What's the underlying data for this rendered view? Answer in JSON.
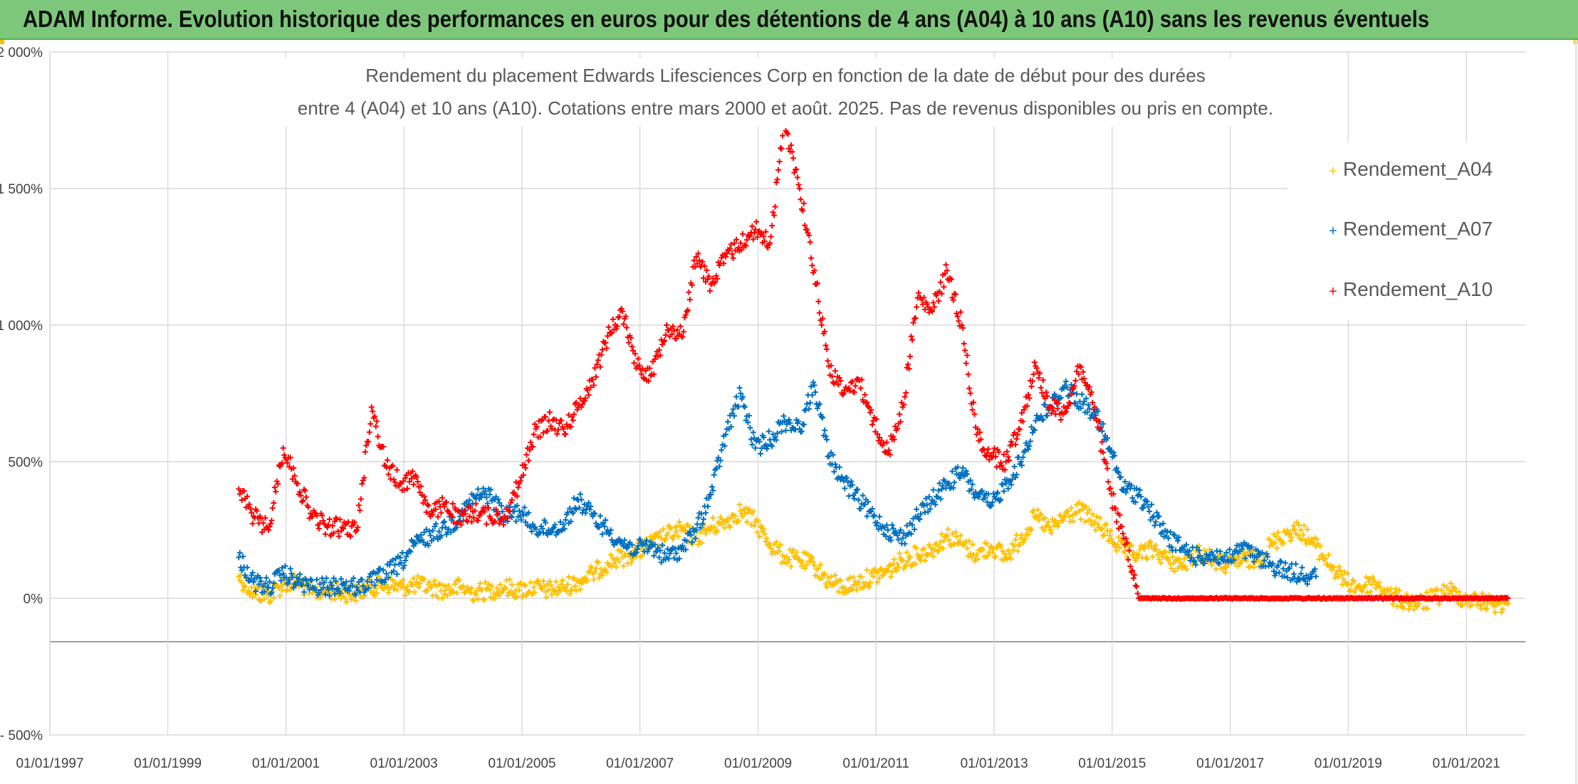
{
  "banner": {
    "title": "ADAM Informe. Evolution historique des performances en euros pour des détentions de 4 ans (A04) à 10 ans (A10) sans les revenus éventuels"
  },
  "colors": {
    "banner_bg": "#7dc77a",
    "A04": "#ffc000",
    "A07": "#0070c0",
    "A10": "#ff0000"
  },
  "chart_data": {
    "type": "scatter",
    "title_lines": [
      "Rendement du placement Edwards Lifesciences Corp en fonction de la date de début pour des durées",
      "entre 4 (A04) et 10 ans (A10). Cotations entre mars 2000 et août. 2025. Pas de revenus disponibles ou pris en compte."
    ],
    "x_ticks": [
      "01/01/1997",
      "01/01/1999",
      "01/01/2001",
      "01/01/2003",
      "01/01/2005",
      "01/01/2007",
      "01/01/2009",
      "01/01/2011",
      "01/01/2013",
      "01/01/2015",
      "01/01/2017",
      "01/01/2019",
      "01/01/2021"
    ],
    "y_ticks": [
      "2 000%",
      "1 500%",
      "1 000%",
      "500%",
      "0%",
      "- 500%"
    ],
    "x_range": [
      "01/01/1997",
      "01/01/2022"
    ],
    "ylim": [
      -500,
      2000
    ],
    "grid": true,
    "legend_position": "right",
    "series": [
      {
        "name": "Rendement_A04",
        "marker": "+",
        "x": [
          "03/2000",
          "06/2000",
          "09/2000",
          "12/2000",
          "03/2001",
          "06/2001",
          "09/2001",
          "12/2001",
          "03/2002",
          "06/2002",
          "09/2002",
          "12/2002",
          "03/2003",
          "06/2003",
          "09/2003",
          "12/2003",
          "03/2004",
          "06/2004",
          "09/2004",
          "12/2004",
          "03/2005",
          "06/2005",
          "09/2005",
          "12/2005",
          "03/2006",
          "06/2006",
          "09/2006",
          "12/2006",
          "03/2007",
          "06/2007",
          "09/2007",
          "12/2007",
          "03/2008",
          "06/2008",
          "09/2008",
          "12/2008",
          "03/2009",
          "06/2009",
          "09/2009",
          "12/2009",
          "03/2010",
          "06/2010",
          "09/2010",
          "12/2010",
          "03/2011",
          "06/2011",
          "09/2011",
          "12/2011",
          "03/2012",
          "06/2012",
          "09/2012",
          "12/2012",
          "03/2013",
          "06/2013",
          "09/2013",
          "12/2013",
          "03/2014",
          "06/2014",
          "09/2014",
          "12/2014",
          "03/2015",
          "06/2015",
          "09/2015",
          "12/2015",
          "03/2016",
          "06/2016",
          "09/2016",
          "12/2016",
          "03/2017",
          "06/2017",
          "09/2017",
          "12/2017",
          "03/2018",
          "06/2018",
          "09/2018",
          "12/2018",
          "03/2019",
          "06/2019",
          "09/2019",
          "12/2019",
          "03/2020",
          "06/2020",
          "09/2020",
          "12/2020",
          "03/2021",
          "06/2021",
          "09/2021"
        ],
        "y": [
          80,
          20,
          10,
          50,
          60,
          20,
          30,
          20,
          20,
          40,
          50,
          40,
          50,
          40,
          30,
          40,
          20,
          30,
          40,
          30,
          40,
          30,
          40,
          60,
          90,
          130,
          150,
          170,
          200,
          230,
          250,
          220,
          260,
          280,
          320,
          280,
          200,
          150,
          140,
          120,
          60,
          40,
          60,
          80,
          100,
          140,
          160,
          180,
          230,
          200,
          160,
          190,
          150,
          220,
          300,
          250,
          300,
          320,
          280,
          230,
          170,
          160,
          180,
          140,
          120,
          170,
          140,
          120,
          140,
          140,
          200,
          240,
          250,
          190,
          120,
          60,
          40,
          60,
          10,
          -10,
          -20,
          0,
          30,
          0,
          -10,
          -20,
          -20
        ]
      },
      {
        "name": "Rendement_A07",
        "marker": "+",
        "x": [
          "03/2000",
          "06/2000",
          "09/2000",
          "12/2000",
          "03/2001",
          "06/2001",
          "09/2001",
          "12/2001",
          "03/2002",
          "06/2002",
          "09/2002",
          "12/2002",
          "03/2003",
          "06/2003",
          "09/2003",
          "12/2003",
          "03/2004",
          "06/2004",
          "09/2004",
          "12/2004",
          "03/2005",
          "06/2005",
          "09/2005",
          "12/2005",
          "03/2006",
          "06/2006",
          "09/2006",
          "12/2006",
          "03/2007",
          "06/2007",
          "09/2007",
          "12/2007",
          "03/2008",
          "06/2008",
          "09/2008",
          "12/2008",
          "03/2009",
          "06/2009",
          "09/2009",
          "12/2009",
          "03/2010",
          "06/2010",
          "09/2010",
          "12/2010",
          "03/2011",
          "06/2011",
          "09/2011",
          "12/2011",
          "03/2012",
          "06/2012",
          "09/2012",
          "12/2012",
          "03/2013",
          "06/2013",
          "09/2013",
          "12/2013",
          "03/2014",
          "06/2014",
          "09/2014",
          "12/2014",
          "03/2015",
          "06/2015",
          "09/2015",
          "12/2015",
          "03/2016",
          "06/2016",
          "09/2016",
          "12/2016",
          "03/2017",
          "06/2017",
          "09/2017",
          "12/2017",
          "03/2018",
          "06/2018"
        ],
        "y": [
          150,
          60,
          40,
          90,
          60,
          40,
          40,
          50,
          40,
          60,
          90,
          130,
          200,
          230,
          260,
          300,
          370,
          380,
          300,
          320,
          260,
          250,
          270,
          360,
          300,
          250,
          200,
          180,
          190,
          150,
          180,
          250,
          380,
          600,
          750,
          550,
          580,
          650,
          620,
          780,
          520,
          430,
          360,
          300,
          250,
          220,
          300,
          360,
          420,
          460,
          380,
          340,
          420,
          500,
          650,
          700,
          780,
          720,
          680,
          550,
          400,
          380,
          300,
          220,
          180,
          150,
          160,
          140,
          180,
          150,
          120,
          100,
          90,
          80
        ]
      },
      {
        "name": "Rendement_A10",
        "marker": "+",
        "x": [
          "03/2000",
          "06/2000",
          "09/2000",
          "12/2000",
          "03/2001",
          "06/2001",
          "09/2001",
          "12/2001",
          "03/2002",
          "06/2002",
          "09/2002",
          "12/2002",
          "03/2003",
          "06/2003",
          "09/2003",
          "12/2003",
          "03/2004",
          "06/2004",
          "09/2004",
          "12/2004",
          "03/2005",
          "06/2005",
          "09/2005",
          "12/2005",
          "03/2006",
          "06/2006",
          "09/2006",
          "12/2006",
          "03/2007",
          "06/2007",
          "09/2007",
          "12/2007",
          "03/2008",
          "06/2008",
          "09/2008",
          "12/2008",
          "03/2009",
          "06/2009",
          "09/2009",
          "12/2009",
          "03/2010",
          "06/2010",
          "09/2010",
          "12/2010",
          "03/2011",
          "06/2011",
          "09/2011",
          "12/2011",
          "03/2012",
          "06/2012",
          "09/2012",
          "12/2012",
          "03/2013",
          "06/2013",
          "09/2013",
          "12/2013",
          "03/2014",
          "06/2014",
          "09/2014",
          "12/2014",
          "03/2015",
          "06/2015",
          "09/2015",
          "12/2015",
          "03/2016",
          "06/2016",
          "09/2016",
          "12/2016",
          "03/2017",
          "06/2017",
          "09/2017",
          "12/2017",
          "03/2018",
          "06/2018",
          "09/2018",
          "12/2018",
          "03/2019",
          "06/2019",
          "09/2019",
          "12/2019",
          "03/2020",
          "06/2020",
          "09/2020",
          "12/2020",
          "03/2021",
          "06/2021",
          "09/2021"
        ],
        "y": [
          400,
          300,
          250,
          550,
          420,
          300,
          260,
          260,
          250,
          700,
          480,
          420,
          450,
          300,
          350,
          280,
          320,
          300,
          300,
          420,
          600,
          650,
          620,
          700,
          800,
          960,
          1050,
          850,
          820,
          1000,
          960,
          1250,
          1150,
          1250,
          1300,
          1350,
          1300,
          1750,
          1500,
          1200,
          850,
          750,
          800,
          650,
          530,
          700,
          1100,
          1050,
          1200,
          1000,
          600,
          520,
          500,
          650,
          850,
          700,
          680,
          850,
          700,
          400,
          220,
          0,
          0,
          0,
          0,
          0,
          0,
          0,
          0,
          0,
          0,
          0,
          0,
          0,
          0,
          0,
          0,
          0,
          0,
          0,
          0,
          0,
          0,
          0,
          0,
          0,
          0
        ]
      }
    ]
  }
}
